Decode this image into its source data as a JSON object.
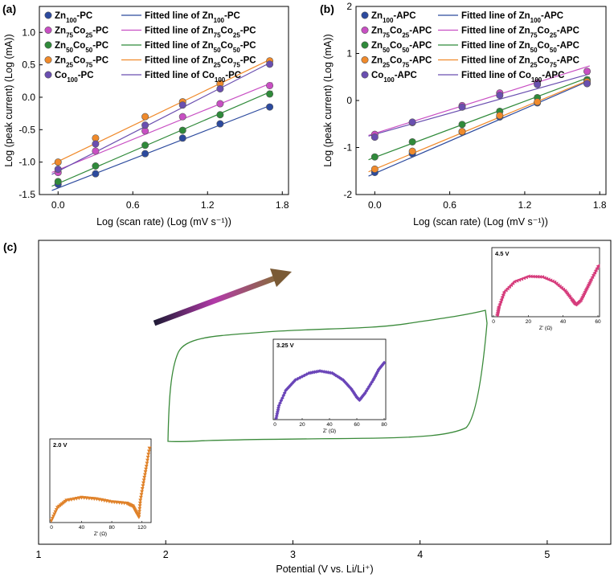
{
  "chart_data": [
    {
      "panel": "(a)",
      "type": "scatter",
      "xlabel": "Log (scan rate) (Log (mV s⁻¹))",
      "ylabel": "Log (peak current) (Log (mA))",
      "xlim": [
        -0.15,
        1.85
      ],
      "ylim": [
        -1.5,
        1.4
      ],
      "xticks": [
        "0.0",
        "0.6",
        "1.2",
        "1.8"
      ],
      "yticks": [
        "-1.5",
        "-1.0",
        "-0.5",
        "0.0",
        "0.5",
        "1.0"
      ],
      "x": [
        0,
        0.301,
        0.699,
        1.0,
        1.301,
        1.699
      ],
      "legend_location": "top-left",
      "series": [
        {
          "base": "Zn",
          "sub1": "100",
          "mid": "",
          "sub2": "",
          "suffix": "-PC",
          "fit_prefix": "Fitted line of ",
          "color": "#2c4a9e",
          "values": [
            -1.34,
            -1.18,
            -0.87,
            -0.63,
            -0.41,
            -0.15
          ],
          "fit": [
            -1.4,
            -0.13
          ]
        },
        {
          "base": "Zn",
          "sub1": "75",
          "mid": "Co",
          "sub2": "25",
          "suffix": "-PC",
          "fit_prefix": "Fitted line of ",
          "color": "#c84fc3",
          "values": [
            -1.16,
            -0.83,
            -0.52,
            -0.3,
            -0.1,
            0.18
          ],
          "fit": [
            -1.12,
            0.21
          ]
        },
        {
          "base": "Zn",
          "sub1": "50",
          "mid": "Co",
          "sub2": "50",
          "suffix": "-PC",
          "fit_prefix": "Fitted line of ",
          "color": "#2f8a3a",
          "values": [
            -1.3,
            -1.06,
            -0.74,
            -0.51,
            -0.27,
            0.05
          ],
          "fit": [
            -1.33,
            0.08
          ]
        },
        {
          "base": "Zn",
          "sub1": "25",
          "mid": "Co",
          "sub2": "75",
          "suffix": "-PC",
          "fit_prefix": "Fitted line of ",
          "color": "#f08a2b",
          "values": [
            -1.0,
            -0.63,
            -0.3,
            -0.07,
            0.21,
            0.56
          ],
          "fit": [
            -0.99,
            0.58
          ]
        },
        {
          "base": "Co",
          "sub1": "100",
          "mid": "",
          "sub2": "",
          "suffix": "-PC",
          "fit_prefix": "Fitted line of ",
          "color": "#6a4fb0",
          "values": [
            -1.11,
            -0.72,
            -0.43,
            -0.12,
            0.13,
            0.51
          ],
          "fit": [
            -1.14,
            0.53
          ]
        }
      ]
    },
    {
      "panel": "(b)",
      "type": "scatter",
      "xlabel": "Log (scan rate) (Log (mV s⁻¹))",
      "ylabel": "Log (peak current) (Log (mA))",
      "xlim": [
        -0.15,
        1.85
      ],
      "ylim": [
        -2,
        2
      ],
      "xticks": [
        "0.0",
        "0.6",
        "1.2",
        "1.8"
      ],
      "yticks": [
        "-2",
        "-1",
        "0",
        "1",
        "2"
      ],
      "x": [
        0,
        0.301,
        0.699,
        1.0,
        1.301,
        1.699
      ],
      "legend_location": "top-left",
      "series": [
        {
          "base": "Zn",
          "sub1": "100",
          "mid": "",
          "sub2": "",
          "suffix": "-APC",
          "fit_prefix": "Fitted line of ",
          "color": "#2c4a9e",
          "values": [
            -1.53,
            -1.13,
            -0.67,
            -0.35,
            -0.05,
            0.36
          ],
          "fit": [
            -1.55,
            0.4
          ]
        },
        {
          "base": "Zn",
          "sub1": "75",
          "mid": "Co",
          "sub2": "25",
          "suffix": "-APC",
          "fit_prefix": "Fitted line of ",
          "color": "#c84fc3",
          "values": [
            -0.72,
            -0.47,
            -0.11,
            0.16,
            0.38,
            0.62
          ],
          "fit": [
            -0.7,
            0.72
          ]
        },
        {
          "base": "Zn",
          "sub1": "50",
          "mid": "Co",
          "sub2": "50",
          "suffix": "-APC",
          "fit_prefix": "Fitted line of ",
          "color": "#2f8a3a",
          "values": [
            -1.2,
            -0.88,
            -0.51,
            -0.23,
            0.06,
            0.44
          ],
          "fit": [
            -1.21,
            0.48
          ]
        },
        {
          "base": "Zn",
          "sub1": "25",
          "mid": "Co",
          "sub2": "75",
          "suffix": "-APC",
          "fit_prefix": "Fitted line of ",
          "color": "#f08a2b",
          "values": [
            -1.46,
            -1.08,
            -0.66,
            -0.32,
            -0.03,
            0.4
          ],
          "fit": [
            -1.46,
            0.42
          ]
        },
        {
          "base": "Co",
          "sub1": "100",
          "mid": "",
          "sub2": "",
          "suffix": "-APC",
          "fit_prefix": "Fitted line of ",
          "color": "#6a4fb0",
          "values": [
            -0.78,
            -0.46,
            -0.14,
            0.11,
            0.34,
            0.36
          ],
          "fit": [
            -0.72,
            0.55
          ]
        }
      ]
    },
    {
      "panel": "(c)",
      "type": "line",
      "xlabel": "Potential (V vs. Li/Li⁺)",
      "xticks": [
        "1",
        "2",
        "3",
        "4",
        "5"
      ],
      "xlim": [
        1,
        5.5
      ],
      "ylabel": "",
      "cv_color": "#3a8a3a",
      "arrow_label": "",
      "insets": [
        {
          "voltage_label": "2.0 V",
          "xlabel": "Z' (Ω)",
          "xticks": [
            "0",
            "40",
            "80",
            "120"
          ],
          "color": "#e0822a",
          "marker": "triangle-down"
        },
        {
          "voltage_label": "3.25 V",
          "xlabel": "Z' (Ω)",
          "xticks": [
            "0",
            "20",
            "40",
            "60",
            "80"
          ],
          "color": "#6a45b8",
          "marker": "diamond"
        },
        {
          "voltage_label": "4.5 V",
          "xlabel": "Z' (Ω)",
          "xticks": [
            "0",
            "20",
            "40",
            "60"
          ],
          "color": "#d63c7c",
          "marker": "triangle-left"
        }
      ]
    }
  ]
}
